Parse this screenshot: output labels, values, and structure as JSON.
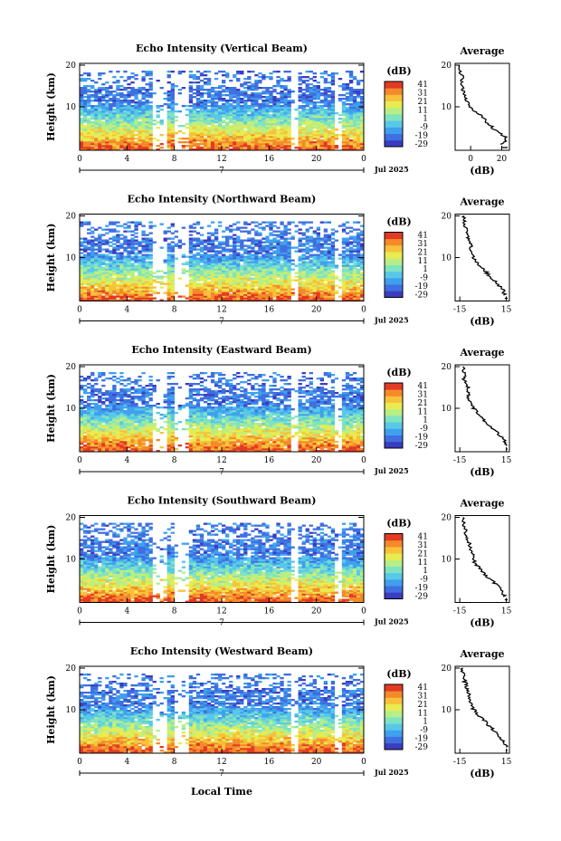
{
  "chart_data": {
    "type": "heatmap",
    "x_axis_label": "Local Time",
    "y_axis_label": "Height (km)",
    "date_label": "Jul 2025",
    "day_marker": "7",
    "x_ticks": [
      "0",
      "4",
      "8",
      "12",
      "16",
      "20",
      "0"
    ],
    "y_ticks": [
      "20",
      "10"
    ],
    "colorbar_title": "(dB)",
    "colorbar_ticks": [
      "41",
      "31",
      "21",
      "11",
      "1",
      "-9",
      "-19",
      "-29"
    ],
    "colorbar_range": [
      -29,
      41
    ],
    "colormap": [
      "#3a3dc0",
      "#3f6fe0",
      "#3fa0ee",
      "#58c8e8",
      "#7fe3c0",
      "#b8ee86",
      "#e8ec50",
      "#f7c23a",
      "#f48a2a",
      "#e23a24"
    ],
    "avg_title": "Average",
    "avg_xlabel": "(dB)",
    "panels": [
      {
        "title": "Echo Intensity (Vertical Beam)",
        "avg_ticks": [
          "0",
          "20"
        ],
        "avg_xrange": [
          -10,
          25
        ],
        "avg_profile": [
          [
            1,
            20
          ],
          [
            2,
            23
          ],
          [
            3,
            22
          ],
          [
            4,
            17
          ],
          [
            5,
            14
          ],
          [
            6,
            11
          ],
          [
            7,
            9
          ],
          [
            8,
            6
          ],
          [
            9,
            3
          ],
          [
            10,
            0
          ],
          [
            11,
            -2
          ],
          [
            12,
            -3
          ],
          [
            13,
            -4
          ],
          [
            14,
            -5
          ],
          [
            15,
            -5
          ],
          [
            16,
            -6
          ],
          [
            17,
            -5
          ],
          [
            18,
            -6
          ],
          [
            19,
            -7
          ],
          [
            20,
            -7
          ]
        ]
      },
      {
        "title": "Echo Intensity (Northward Beam)",
        "avg_ticks": [
          "-15",
          "15"
        ],
        "avg_xrange": [
          -18,
          17
        ],
        "avg_profile": [
          [
            1,
            14
          ],
          [
            2,
            13
          ],
          [
            3,
            11
          ],
          [
            4,
            9
          ],
          [
            5,
            6
          ],
          [
            6,
            3
          ],
          [
            7,
            1
          ],
          [
            8,
            -2
          ],
          [
            9,
            -4
          ],
          [
            10,
            -6
          ],
          [
            11,
            -7
          ],
          [
            12,
            -8
          ],
          [
            13,
            -8
          ],
          [
            14,
            -9
          ],
          [
            15,
            -10
          ],
          [
            16,
            -11
          ],
          [
            17,
            -11
          ],
          [
            18,
            -12
          ],
          [
            19,
            -12
          ],
          [
            20,
            -12
          ]
        ]
      },
      {
        "title": "Echo Intensity (Eastward Beam)",
        "avg_ticks": [
          "-15",
          "15"
        ],
        "avg_xrange": [
          -18,
          17
        ],
        "avg_profile": [
          [
            1,
            15
          ],
          [
            2,
            14
          ],
          [
            3,
            12
          ],
          [
            4,
            10
          ],
          [
            5,
            7
          ],
          [
            6,
            4
          ],
          [
            7,
            1
          ],
          [
            8,
            -2
          ],
          [
            9,
            -4
          ],
          [
            10,
            -6
          ],
          [
            11,
            -8
          ],
          [
            12,
            -9
          ],
          [
            13,
            -9
          ],
          [
            14,
            -10
          ],
          [
            15,
            -10
          ],
          [
            16,
            -11
          ],
          [
            17,
            -12
          ],
          [
            18,
            -12
          ],
          [
            19,
            -13
          ],
          [
            20,
            -13
          ]
        ]
      },
      {
        "title": "Echo Intensity (Southward Beam)",
        "avg_ticks": [
          "-15",
          "15"
        ],
        "avg_xrange": [
          -18,
          17
        ],
        "avg_profile": [
          [
            1,
            14
          ],
          [
            2,
            13
          ],
          [
            3,
            11
          ],
          [
            4,
            8
          ],
          [
            5,
            5
          ],
          [
            6,
            2
          ],
          [
            7,
            0
          ],
          [
            8,
            -3
          ],
          [
            9,
            -5
          ],
          [
            10,
            -6
          ],
          [
            11,
            -7
          ],
          [
            12,
            -8
          ],
          [
            13,
            -8
          ],
          [
            14,
            -9
          ],
          [
            15,
            -10
          ],
          [
            16,
            -11
          ],
          [
            17,
            -11
          ],
          [
            18,
            -12
          ],
          [
            19,
            -13
          ],
          [
            20,
            -13
          ]
        ]
      },
      {
        "title": "Echo Intensity (Westward Beam)",
        "avg_ticks": [
          "-15",
          "15"
        ],
        "avg_xrange": [
          -18,
          17
        ],
        "avg_profile": [
          [
            1,
            15
          ],
          [
            2,
            14
          ],
          [
            3,
            12
          ],
          [
            4,
            10
          ],
          [
            5,
            7
          ],
          [
            6,
            4
          ],
          [
            7,
            2
          ],
          [
            8,
            -1
          ],
          [
            9,
            -4
          ],
          [
            10,
            -6
          ],
          [
            11,
            -7
          ],
          [
            12,
            -8
          ],
          [
            13,
            -9
          ],
          [
            14,
            -9
          ],
          [
            15,
            -10
          ],
          [
            16,
            -11
          ],
          [
            17,
            -12
          ],
          [
            18,
            -12
          ],
          [
            19,
            -13
          ],
          [
            20,
            -13
          ]
        ]
      }
    ]
  }
}
